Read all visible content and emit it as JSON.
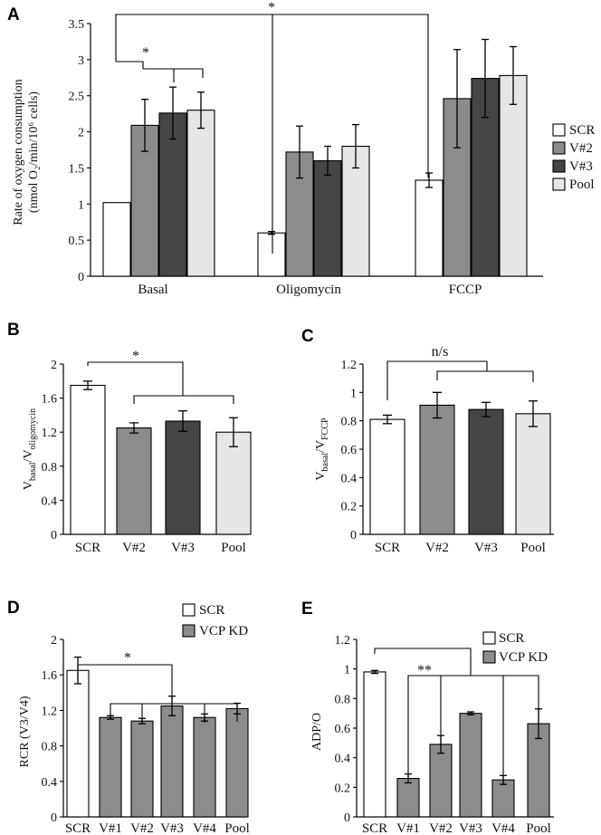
{
  "colors": {
    "SCR": "#ffffff",
    "V#2": "#8c8c8c",
    "V#3": "#454545",
    "Pool": "#e6e6e6",
    "VCP KD": "#8c8c8c",
    "text": "#111111"
  },
  "chart_data": [
    {
      "id": "A",
      "panel_label": "A",
      "type": "bar",
      "ylabel_lines": [
        "Rate of oxygen consumption",
        "(nmol O₂/min/10⁶ cells)"
      ],
      "ylim": [
        0,
        3.5
      ],
      "yticks": [
        "0",
        "0.5",
        "1",
        "1.5",
        "2",
        "2.5",
        "3",
        "3.5"
      ],
      "categories": [
        "Basal",
        "Oligomycin",
        "FCCP"
      ],
      "series": [
        {
          "name": "SCR",
          "values": [
            1.02,
            0.6,
            1.33
          ],
          "errors": [
            0,
            0.02,
            0.1
          ]
        },
        {
          "name": "V#2",
          "values": [
            2.09,
            1.72,
            2.46
          ],
          "errors": [
            0.36,
            0.36,
            0.68
          ]
        },
        {
          "name": "V#3",
          "values": [
            2.26,
            1.6,
            2.74
          ],
          "errors": [
            0.36,
            0.2,
            0.54
          ]
        },
        {
          "name": "Pool",
          "values": [
            2.3,
            1.8,
            2.78
          ],
          "errors": [
            0.25,
            0.3,
            0.4
          ]
        }
      ],
      "legend": [
        "SCR",
        "V#2",
        "V#3",
        "Pool"
      ],
      "annotations": [
        "*",
        "*"
      ]
    },
    {
      "id": "B",
      "panel_label": "B",
      "type": "bar",
      "ylabel": "V_basal/V_oligomycin",
      "ylabel_main": "V",
      "ylabel_sub1": "basal",
      "ylabel_sep": "/V",
      "ylabel_sub2": "oligomycin",
      "ylim": [
        0,
        2
      ],
      "yticks": [
        "0",
        "0.4",
        "0.8",
        "1.2",
        "1.6",
        "2"
      ],
      "categories": [
        "SCR",
        "V#2",
        "V#3",
        "Pool"
      ],
      "values": [
        1.75,
        1.25,
        1.33,
        1.2
      ],
      "errors": [
        0.05,
        0.06,
        0.12,
        0.17
      ],
      "annotation": "*"
    },
    {
      "id": "C",
      "panel_label": "C",
      "type": "bar",
      "ylabel": "V_basal/V_FCCP",
      "ylabel_main": "V",
      "ylabel_sub1": "basal",
      "ylabel_sep": "/V",
      "ylabel_sub2": "FCCP",
      "ylim": [
        0,
        1.2
      ],
      "yticks": [
        "0",
        "0.2",
        "0.4",
        "0.6",
        "0.8",
        "1",
        "1.2"
      ],
      "categories": [
        "SCR",
        "V#2",
        "V#3",
        "Pool"
      ],
      "values": [
        0.81,
        0.91,
        0.88,
        0.85
      ],
      "errors": [
        0.03,
        0.09,
        0.05,
        0.09
      ],
      "annotation": "n/s"
    },
    {
      "id": "D",
      "panel_label": "D",
      "type": "bar",
      "ylabel": "RCR (V3/V4)",
      "ylim": [
        0,
        2
      ],
      "yticks": [
        "0",
        "0.4",
        "0.8",
        "1.2",
        "1.6",
        "2"
      ],
      "categories": [
        "SCR",
        "V#1",
        "V#2",
        "V#3",
        "V#4",
        "Pool"
      ],
      "values": [
        1.65,
        1.12,
        1.08,
        1.25,
        1.12,
        1.22
      ],
      "errors": [
        0.15,
        0.02,
        0.03,
        0.11,
        0.04,
        0.06
      ],
      "legend": [
        "SCR",
        "VCP KD"
      ],
      "annotation": "*"
    },
    {
      "id": "E",
      "panel_label": "E",
      "type": "bar",
      "ylabel": "ADP/O",
      "ylim": [
        0,
        1.2
      ],
      "yticks": [
        "0",
        "0.2",
        "0.4",
        "0.6",
        "0.8",
        "1",
        "1.2"
      ],
      "categories": [
        "SCR",
        "V#1",
        "V#2",
        "V#3",
        "V#4",
        "Pool"
      ],
      "values": [
        0.98,
        0.26,
        0.49,
        0.7,
        0.25,
        0.63
      ],
      "errors": [
        0.01,
        0.03,
        0.06,
        0.01,
        0.03,
        0.1
      ],
      "legend": [
        "SCR",
        "VCP KD"
      ],
      "annotation": "**"
    }
  ]
}
